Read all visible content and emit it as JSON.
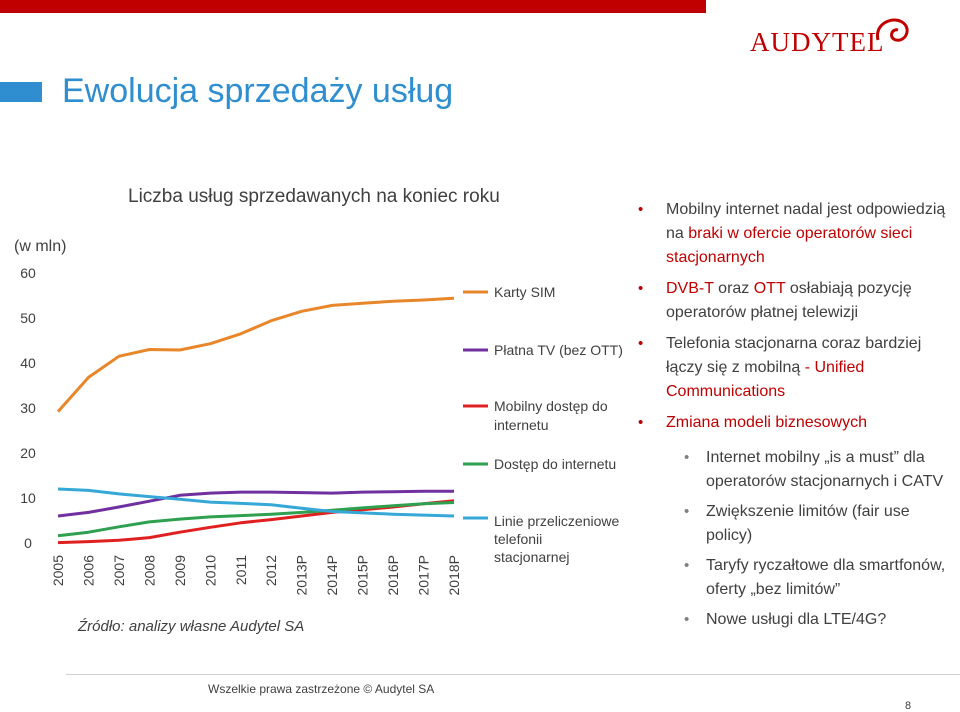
{
  "logo": {
    "text": "AUDYTEL",
    "color": "#c00000"
  },
  "slide": {
    "title": "Ewolucja sprzedaży usług",
    "chart_title": "Liczba usług sprzedawanych na koniec roku",
    "unit_label": "(w mln)",
    "source": "Źródło: analizy własne Audytel SA",
    "footer": "Wszelkie prawa zastrzeżone © Audytel  SA",
    "page_number": "8"
  },
  "bullets": [
    {
      "parts": [
        "Mobilny internet nadal jest odpowiedzią na ",
        "braki w ofercie operatorów sieci stacjonarnych",
        ""
      ]
    },
    {
      "parts": [
        "",
        "DVB-T",
        " oraz "
      ],
      "parts2": [
        "OTT",
        " osłabiają pozycję operatorów płatnej telewizji"
      ]
    },
    {
      "parts": [
        "Telefonia stacjonarna coraz bardziej łączy się z mobilną ",
        "- Unified Communications",
        ""
      ]
    },
    {
      "parts": [
        "",
        "Zmiana modeli biznesowych",
        ""
      ]
    }
  ],
  "sub_bullets": [
    "Internet mobilny „is a must” dla operatorów stacjonarnych i CATV",
    "Zwiększenie limitów (fair use policy)",
    "Taryfy ryczałtowe dla smartfonów, oferty „bez limitów”",
    "Nowe usługi dla LTE/4G?"
  ],
  "chart_data": {
    "type": "line",
    "categories": [
      "2005",
      "2006",
      "2007",
      "2008",
      "2009",
      "2010",
      "2011",
      "2012",
      "2013P",
      "2014P",
      "2015P",
      "2016P",
      "2017P",
      "2018P"
    ],
    "ylim": [
      0,
      60
    ],
    "yticks": [
      0,
      10,
      20,
      30,
      40,
      50,
      60
    ],
    "ylabel": "(w mln)",
    "grid": false,
    "legend": "right",
    "series": [
      {
        "name": "Karty SIM",
        "color": "#e8862a",
        "values": [
          29.2,
          36.8,
          41.5,
          43.0,
          42.9,
          44.3,
          46.5,
          49.4,
          51.5,
          52.8,
          53.3,
          53.7,
          54.0,
          54.4
        ]
      },
      {
        "name": "Płatna TV (bez OTT)",
        "color": "#7030a0",
        "values": [
          6.0,
          6.8,
          8.0,
          9.3,
          10.6,
          11.1,
          11.3,
          11.3,
          11.2,
          11.1,
          11.3,
          11.4,
          11.5,
          11.5
        ]
      },
      {
        "name": "Mobilny dostęp do internetu",
        "color": "#e02020",
        "values": [
          0.1,
          0.3,
          0.6,
          1.2,
          2.4,
          3.5,
          4.5,
          5.2,
          6.0,
          6.8,
          7.4,
          8.0,
          8.7,
          9.4
        ]
      },
      {
        "name": "Dostęp do internetu",
        "color": "#2ea050",
        "values": [
          1.6,
          2.4,
          3.6,
          4.7,
          5.3,
          5.8,
          6.1,
          6.4,
          6.8,
          7.3,
          7.8,
          8.3,
          8.7,
          9.0
        ]
      },
      {
        "name": "Linie przeliczeniowe telefonii stacjonarnej",
        "color": "#35a8d8",
        "values": [
          12.0,
          11.7,
          10.9,
          10.3,
          9.7,
          9.1,
          8.8,
          8.5,
          7.7,
          7.0,
          6.7,
          6.4,
          6.2,
          6.0
        ]
      }
    ]
  }
}
